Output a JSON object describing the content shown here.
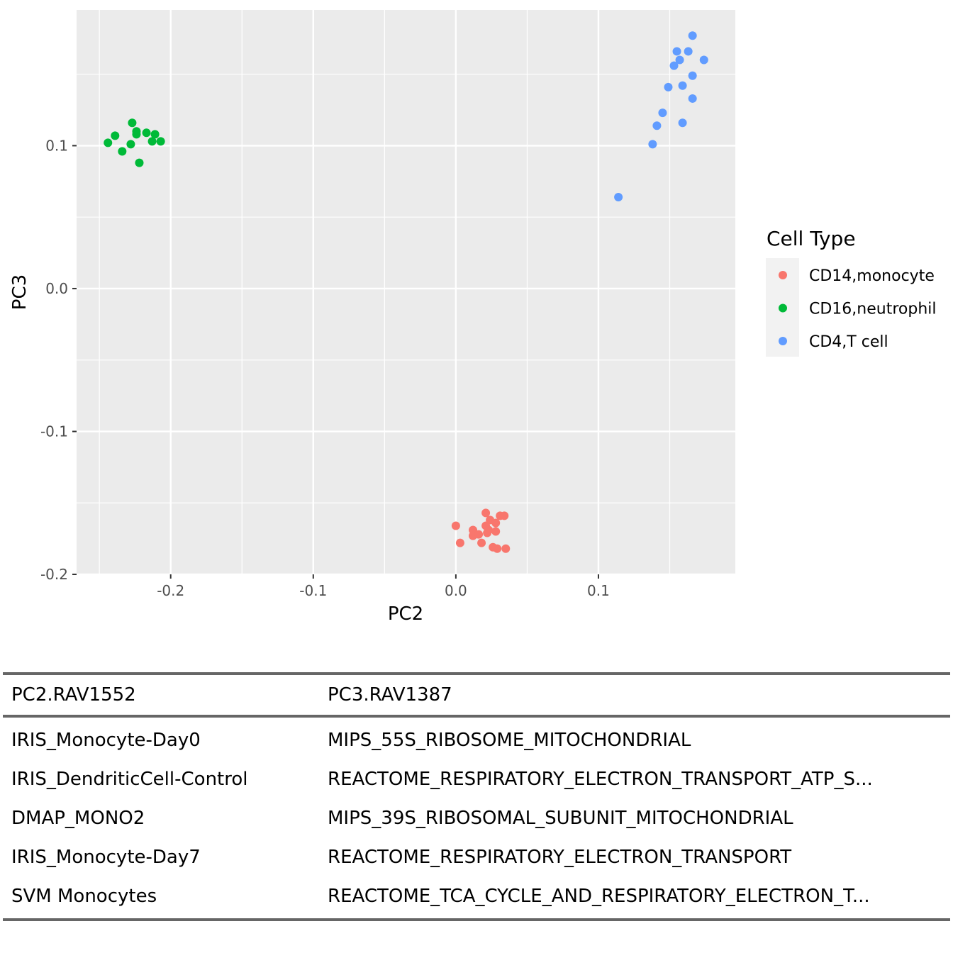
{
  "chart_data": {
    "type": "scatter",
    "xlabel": "PC2",
    "ylabel": "PC3",
    "xlim": [
      -0.266,
      0.196
    ],
    "ylim": [
      -0.2,
      0.195
    ],
    "x_ticks": [
      -0.2,
      -0.1,
      0.0,
      0.1
    ],
    "x_tick_labels": [
      "-0.2",
      "-0.1",
      "0.0",
      "0.1"
    ],
    "y_ticks": [
      -0.2,
      -0.1,
      0.0,
      0.1
    ],
    "y_tick_labels": [
      "-0.2",
      "-0.1",
      "0.0",
      "0.1"
    ],
    "grid": true,
    "legend": {
      "title": "Cell Type",
      "position": "right"
    },
    "series": [
      {
        "name": "CD14,monocyte",
        "color": "#F8766D",
        "points": [
          [
            0.0,
            -0.166
          ],
          [
            0.003,
            -0.178
          ],
          [
            0.012,
            -0.169
          ],
          [
            0.012,
            -0.173
          ],
          [
            0.016,
            -0.172
          ],
          [
            0.018,
            -0.178
          ],
          [
            0.021,
            -0.166
          ],
          [
            0.021,
            -0.157
          ],
          [
            0.022,
            -0.171
          ],
          [
            0.023,
            -0.169
          ],
          [
            0.024,
            -0.162
          ],
          [
            0.026,
            -0.181
          ],
          [
            0.028,
            -0.164
          ],
          [
            0.028,
            -0.17
          ],
          [
            0.029,
            -0.182
          ],
          [
            0.031,
            -0.159
          ],
          [
            0.034,
            -0.159
          ],
          [
            0.035,
            -0.182
          ]
        ]
      },
      {
        "name": "CD16,neutrophil",
        "color": "#00BA38",
        "points": [
          [
            -0.244,
            0.102
          ],
          [
            -0.239,
            0.107
          ],
          [
            -0.234,
            0.096
          ],
          [
            -0.228,
            0.101
          ],
          [
            -0.227,
            0.116
          ],
          [
            -0.224,
            0.108
          ],
          [
            -0.224,
            0.11
          ],
          [
            -0.222,
            0.088
          ],
          [
            -0.217,
            0.109
          ],
          [
            -0.213,
            0.103
          ],
          [
            -0.211,
            0.108
          ],
          [
            -0.207,
            0.103
          ]
        ]
      },
      {
        "name": "CD4,T cell",
        "color": "#619CFF",
        "points": [
          [
            0.114,
            0.064
          ],
          [
            0.138,
            0.101
          ],
          [
            0.141,
            0.114
          ],
          [
            0.145,
            0.123
          ],
          [
            0.149,
            0.141
          ],
          [
            0.153,
            0.156
          ],
          [
            0.155,
            0.166
          ],
          [
            0.157,
            0.16
          ],
          [
            0.159,
            0.116
          ],
          [
            0.159,
            0.142
          ],
          [
            0.163,
            0.166
          ],
          [
            0.166,
            0.149
          ],
          [
            0.166,
            0.133
          ],
          [
            0.166,
            0.177
          ],
          [
            0.174,
            0.16
          ]
        ]
      }
    ]
  },
  "table": {
    "headers": [
      "PC2.RAV1552",
      "PC3.RAV1387"
    ],
    "rows": [
      [
        "IRIS_Monocyte-Day0",
        "MIPS_55S_RIBOSOME_MITOCHONDRIAL"
      ],
      [
        "IRIS_DendriticCell-Control",
        "REACTOME_RESPIRATORY_ELECTRON_TRANSPORT_ATP_S..."
      ],
      [
        "DMAP_MONO2",
        "MIPS_39S_RIBOSOMAL_SUBUNIT_MITOCHONDRIAL"
      ],
      [
        "IRIS_Monocyte-Day7",
        "REACTOME_RESPIRATORY_ELECTRON_TRANSPORT"
      ],
      [
        "SVM Monocytes",
        "REACTOME_TCA_CYCLE_AND_RESPIRATORY_ELECTRON_T..."
      ]
    ]
  }
}
